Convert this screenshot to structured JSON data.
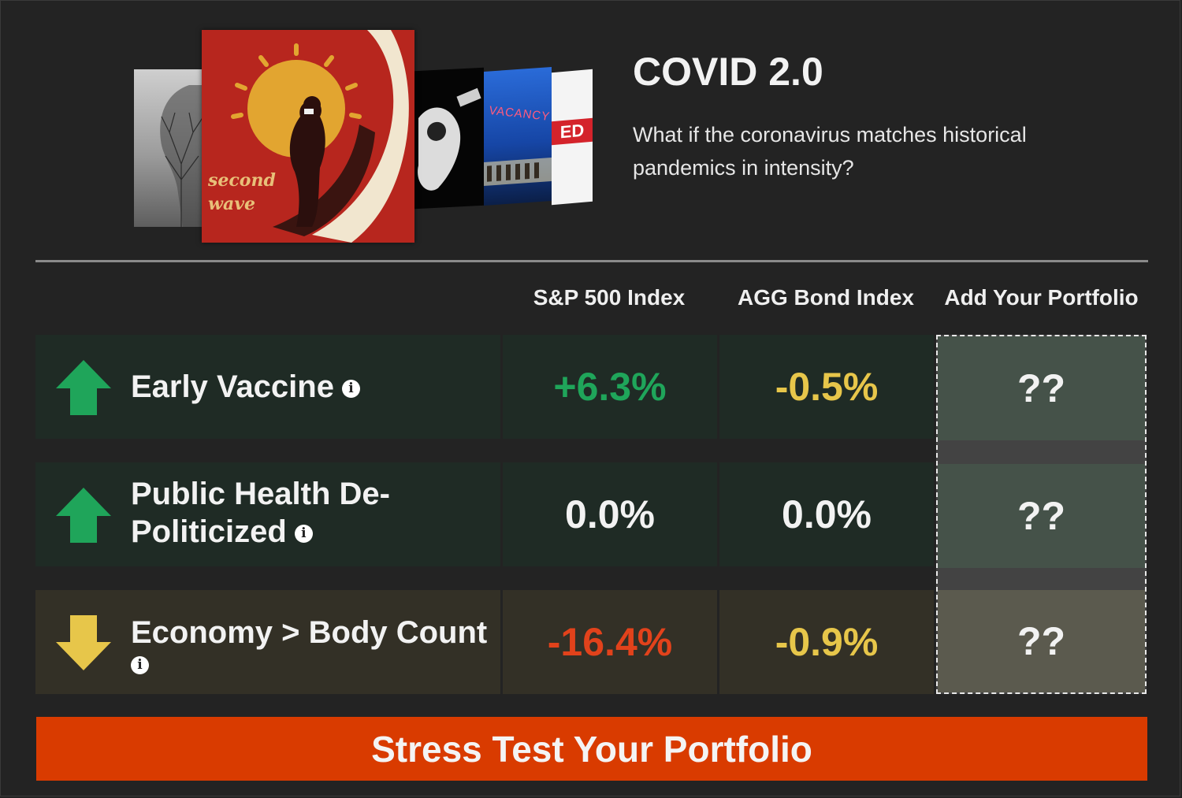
{
  "header": {
    "title": "COVID 2.0",
    "subtitle": "What if the coronavirus matches historical pandemics in intensity?",
    "cover_text": [
      "second",
      "wave"
    ],
    "card_texts": {
      "vacancy": "VACANCY",
      "ed": "ED"
    }
  },
  "table": {
    "columns": [
      "S&P 500 Index",
      "AGG Bond Index",
      "Add Your Portfolio"
    ],
    "rows": [
      {
        "label_lines": [
          "Early Vaccine"
        ],
        "direction": "up-arrow-icon",
        "sp500": "+6.3%",
        "agg": "-0.5%",
        "portfolio": "??"
      },
      {
        "label_lines": [
          "Public Health De-",
          "Politicized"
        ],
        "direction": "up-arrow-icon",
        "sp500": "0.0%",
        "agg": "0.0%",
        "portfolio": "??"
      },
      {
        "label_lines": [
          "Economy > Body Count"
        ],
        "direction": "down-arrow-icon",
        "sp500": "-16.4%",
        "agg": "-0.9%",
        "portfolio": "??"
      }
    ]
  },
  "cta": {
    "label": "Stress Test Your Portfolio"
  },
  "colors": {
    "background": "#232323",
    "positive": "#1fa55a",
    "neutral_warn": "#e7c64a",
    "negative": "#e2421b",
    "cta": "#d93b00"
  }
}
